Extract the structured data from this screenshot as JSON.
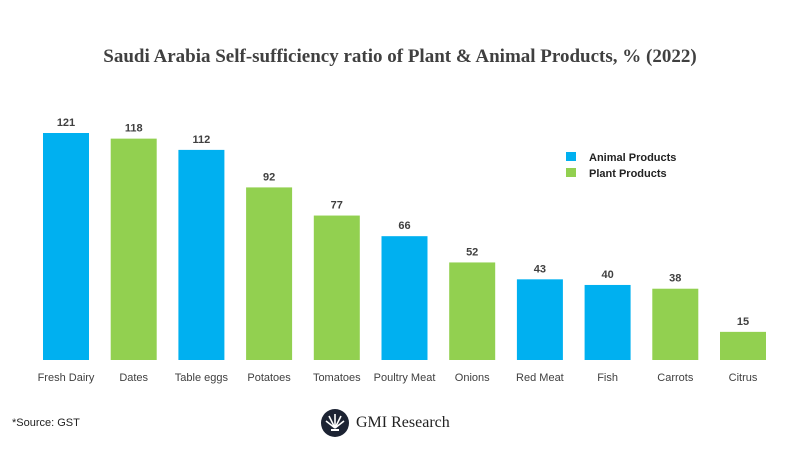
{
  "chart_data": {
    "type": "bar",
    "title": "Saudi Arabia Self-sufficiency ratio of Plant & Animal Products, % (2022)",
    "categories": [
      "Fresh Dairy",
      "Dates",
      "Table eggs",
      "Potatoes",
      "Tomatoes",
      "Poultry Meat",
      "Onions",
      "Red Meat",
      "Fish",
      "Carrots",
      "Citrus"
    ],
    "values": [
      121,
      118,
      112,
      92,
      77,
      66,
      52,
      43,
      40,
      38,
      15
    ],
    "groups": [
      "Animal Products",
      "Plant Products",
      "Animal Products",
      "Plant Products",
      "Plant Products",
      "Animal Products",
      "Plant Products",
      "Animal Products",
      "Animal Products",
      "Plant Products",
      "Plant Products"
    ],
    "legend": [
      {
        "name": "Animal Products",
        "color": "#00b0f0"
      },
      {
        "name": "Plant Products",
        "color": "#92d050"
      }
    ],
    "legend_position": "top-right",
    "grid": false,
    "ylim": [
      0,
      121
    ],
    "xlabel": "",
    "ylabel": ""
  },
  "source": "*Source: GST",
  "logo": {
    "text": "GMI Research"
  }
}
